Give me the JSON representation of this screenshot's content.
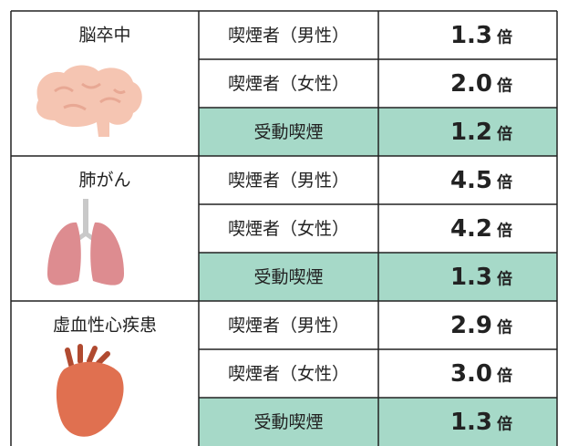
{
  "table": {
    "groups": [
      {
        "disease": "脳卒中",
        "rows": [
          {
            "label": "喫煙者（男性）",
            "value": "1.3",
            "unit": "倍"
          },
          {
            "label": "喫煙者（女性）",
            "value": "2.0",
            "unit": "倍"
          },
          {
            "label": "受動喫煙",
            "value": "1.2",
            "unit": "倍"
          }
        ]
      },
      {
        "disease": "肺がん",
        "rows": [
          {
            "label": "喫煙者（男性）",
            "value": "4.5",
            "unit": "倍"
          },
          {
            "label": "喫煙者（女性）",
            "value": "4.2",
            "unit": "倍"
          },
          {
            "label": "受動喫煙",
            "value": "1.3",
            "unit": "倍"
          }
        ]
      },
      {
        "disease": "虚血性心疾患",
        "rows": [
          {
            "label": "喫煙者（男性）",
            "value": "2.9",
            "unit": "倍"
          },
          {
            "label": "喫煙者（女性）",
            "value": "3.0",
            "unit": "倍"
          },
          {
            "label": "受動喫煙",
            "value": "1.3",
            "unit": "倍"
          }
        ]
      }
    ]
  }
}
